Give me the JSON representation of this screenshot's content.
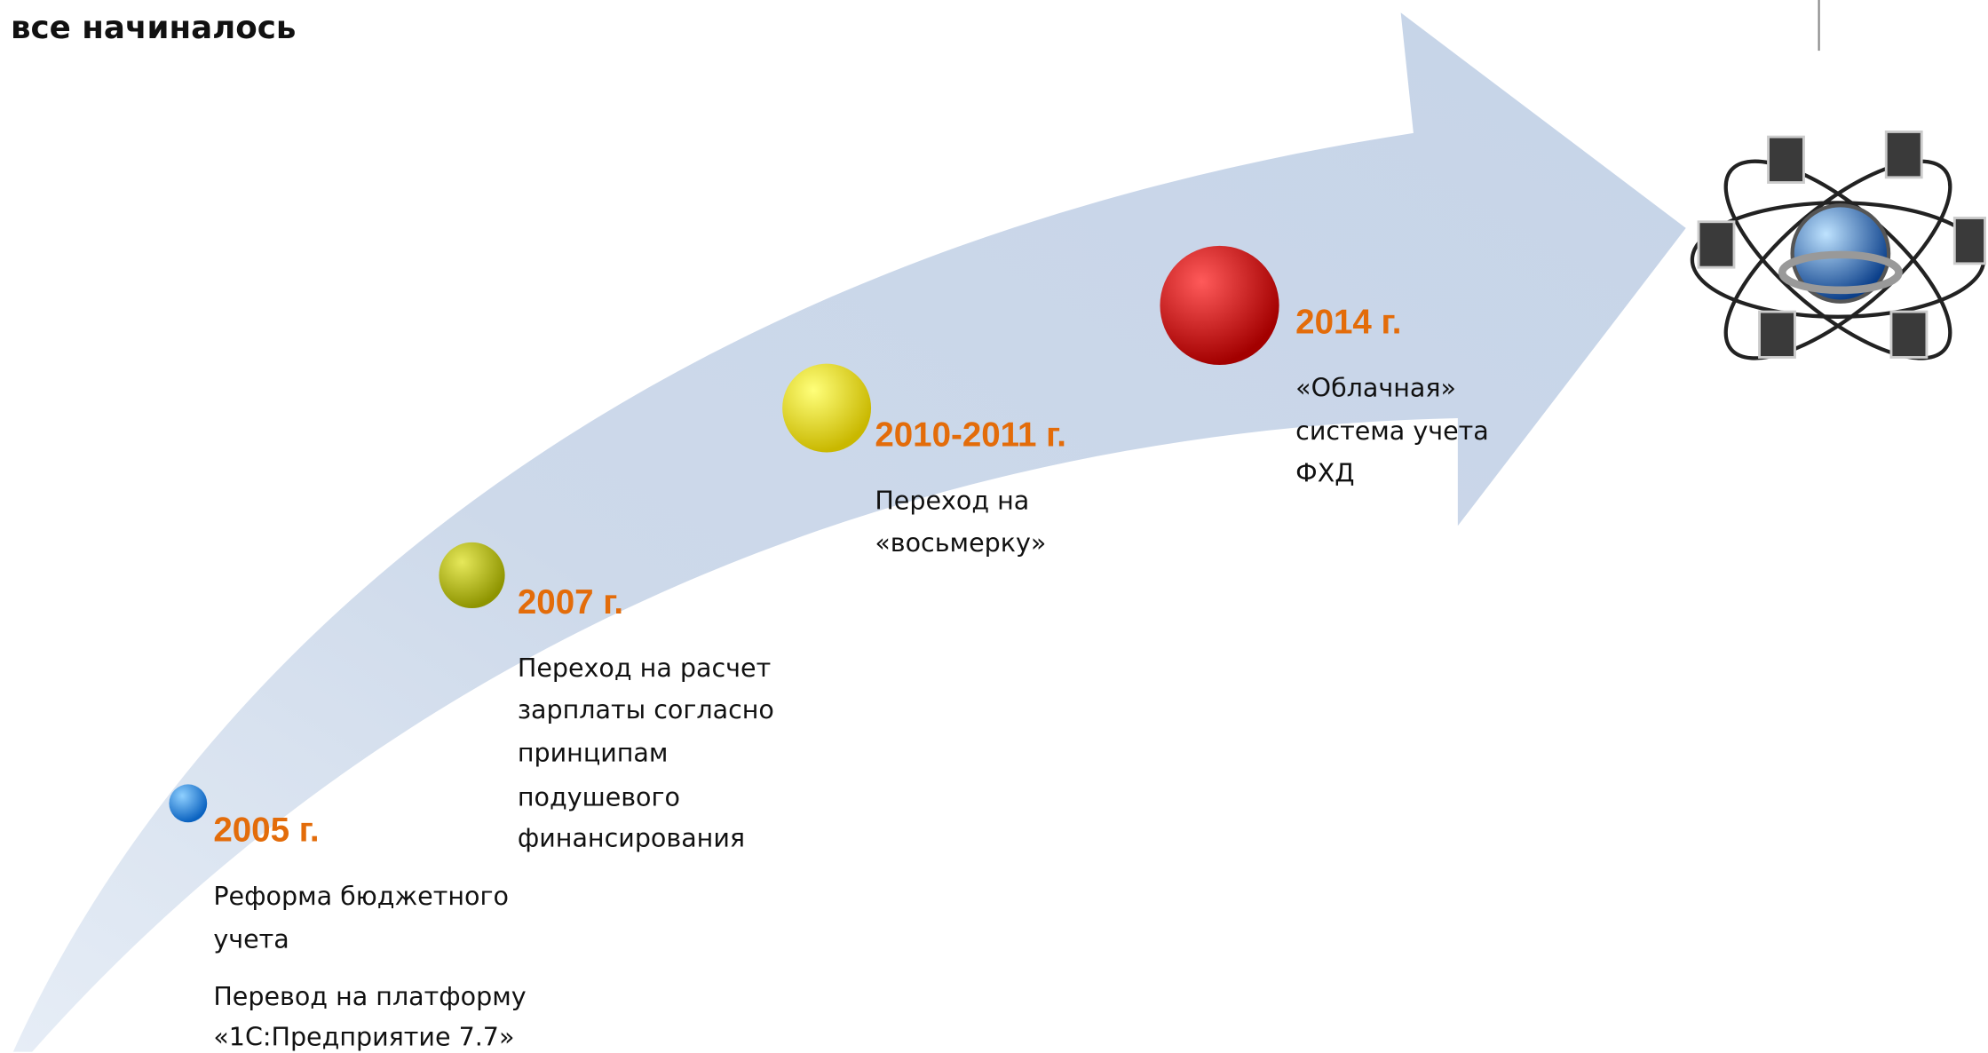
{
  "title": "все начиналось",
  "milestones": [
    {
      "year": "2005 г.",
      "lines": [
        "Реформа бюджетного",
        "учета",
        "Перевод на платформу",
        "«1С:Предприятие 7.7»"
      ]
    },
    {
      "year": "2007 г.",
      "lines": [
        "Переход на расчет",
        "зарплаты согласно",
        "принципам",
        "подушевого",
        "финансирования"
      ]
    },
    {
      "year": "2010-2011 г.",
      "lines": [
        "Переход на",
        "«восьмерку»"
      ]
    },
    {
      "year": "2014 г.",
      "lines": [
        "«Облачная»",
        "система учета",
        "ФХД"
      ]
    }
  ]
}
